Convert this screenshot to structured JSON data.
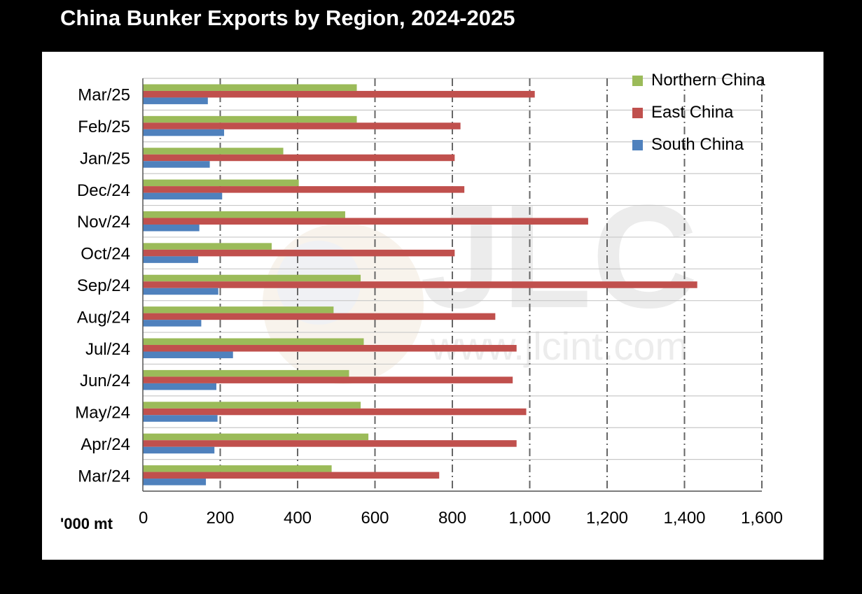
{
  "title": "China Bunker Exports by Region, 2024-2025",
  "chart_data": {
    "type": "bar",
    "orientation": "horizontal",
    "title": "China Bunker Exports by Region, 2024-2025",
    "xlabel": "'000 mt",
    "ylabel": "",
    "xlim": [
      0,
      1600
    ],
    "xticks": [
      0,
      200,
      400,
      600,
      800,
      1000,
      1200,
      1400,
      1600
    ],
    "xtick_labels": [
      "0",
      "200",
      "400",
      "600",
      "800",
      "1,000",
      "1,200",
      "1,400",
      "1,600"
    ],
    "grid": "vertical dash-dot lines at each x tick",
    "legend": "top-right",
    "categories": [
      "Mar/25",
      "Feb/25",
      "Jan/25",
      "Dec/24",
      "Nov/24",
      "Oct/24",
      "Sep/24",
      "Aug/24",
      "Jul/24",
      "Jun/24",
      "May/24",
      "Apr/24",
      "Mar/24"
    ],
    "series": [
      {
        "name": "Northern China",
        "color": "#9BBB59",
        "values": [
          553,
          553,
          363,
          403,
          523,
          333,
          563,
          493,
          571,
          533,
          563,
          583,
          488
        ]
      },
      {
        "name": "East China",
        "color": "#C0504D",
        "values": [
          1013,
          821,
          806,
          831,
          1151,
          806,
          1433,
          911,
          966,
          956,
          991,
          966,
          766
        ]
      },
      {
        "name": "South China",
        "color": "#4F81BD",
        "values": [
          168,
          210,
          173,
          205,
          146,
          143,
          195,
          151,
          233,
          190,
          193,
          185,
          163
        ]
      }
    ],
    "watermark": "JLC www.jlcint.com"
  }
}
